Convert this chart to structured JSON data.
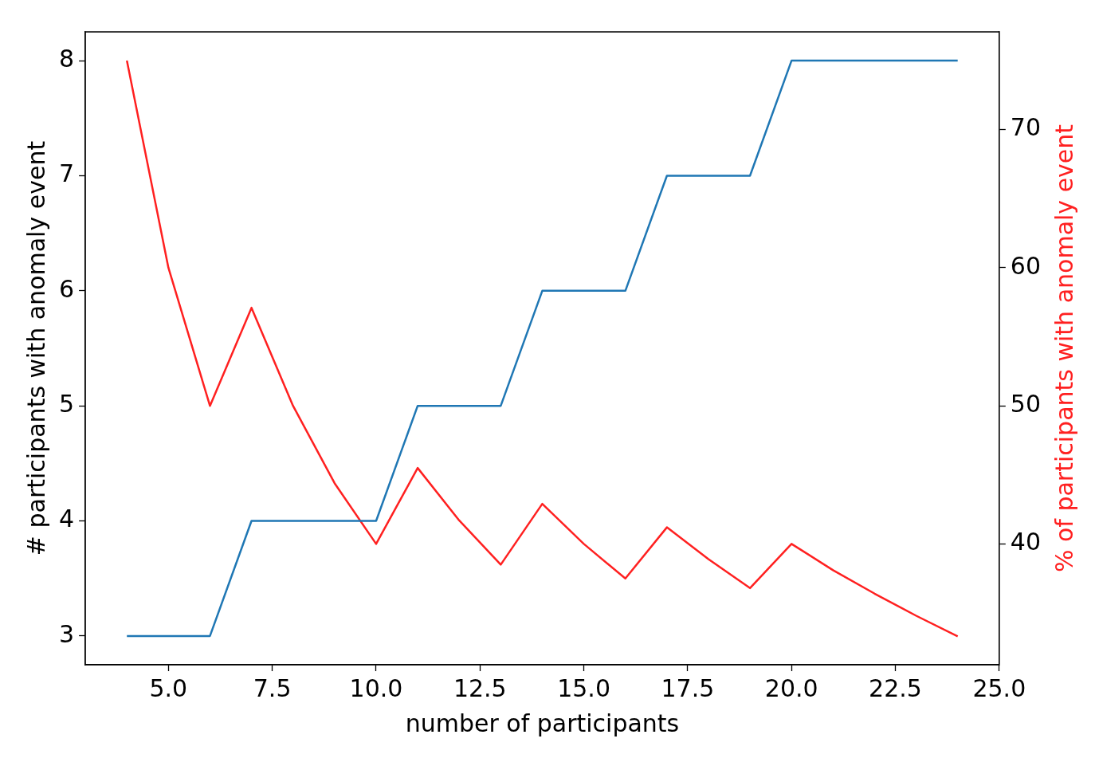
{
  "chart_data": {
    "type": "line",
    "xlabel": "number of participants",
    "ylabel": "# participants with anomaly event",
    "y2label": "% of participants with anomaly event",
    "x": [
      4,
      5,
      6,
      7,
      8,
      9,
      10,
      11,
      12,
      13,
      14,
      15,
      16,
      17,
      18,
      19,
      20,
      21,
      22,
      23,
      24
    ],
    "series": [
      {
        "color": "#1f77b4",
        "values": [
          3,
          3,
          3,
          4,
          4,
          4,
          4,
          5,
          5,
          5,
          6,
          6,
          6,
          7,
          7,
          7,
          8,
          8,
          8,
          8,
          8
        ]
      },
      {
        "color": "#ff2020",
        "axis": "y2",
        "values": [
          75,
          60,
          50,
          57.1,
          50,
          44.4,
          40,
          45.5,
          41.7,
          38.5,
          42.9,
          40,
          37.5,
          41.2,
          38.9,
          36.8,
          40,
          38.1,
          36.4,
          34.8,
          33.3
        ]
      }
    ],
    "xlim": [
      3,
      25
    ],
    "xticks": [
      {
        "value": 5,
        "label": "5.0"
      },
      {
        "value": 7.5,
        "label": "7.5"
      },
      {
        "value": 10,
        "label": "10.0"
      },
      {
        "value": 12.5,
        "label": "12.5"
      },
      {
        "value": 15,
        "label": "15.0"
      },
      {
        "value": 17.5,
        "label": "17.5"
      },
      {
        "value": 20,
        "label": "20.0"
      },
      {
        "value": 22.5,
        "label": "22.5"
      },
      {
        "value": 25,
        "label": "25.0"
      }
    ],
    "ylim": [
      2.75,
      8.25
    ],
    "yticks": [
      3,
      4,
      5,
      6,
      7,
      8
    ],
    "y2lim": [
      31.25,
      77.08
    ],
    "y2ticks": [
      40,
      50,
      60,
      70
    ],
    "grid": false,
    "legend": false,
    "marker": "none",
    "line_style": "solid"
  }
}
